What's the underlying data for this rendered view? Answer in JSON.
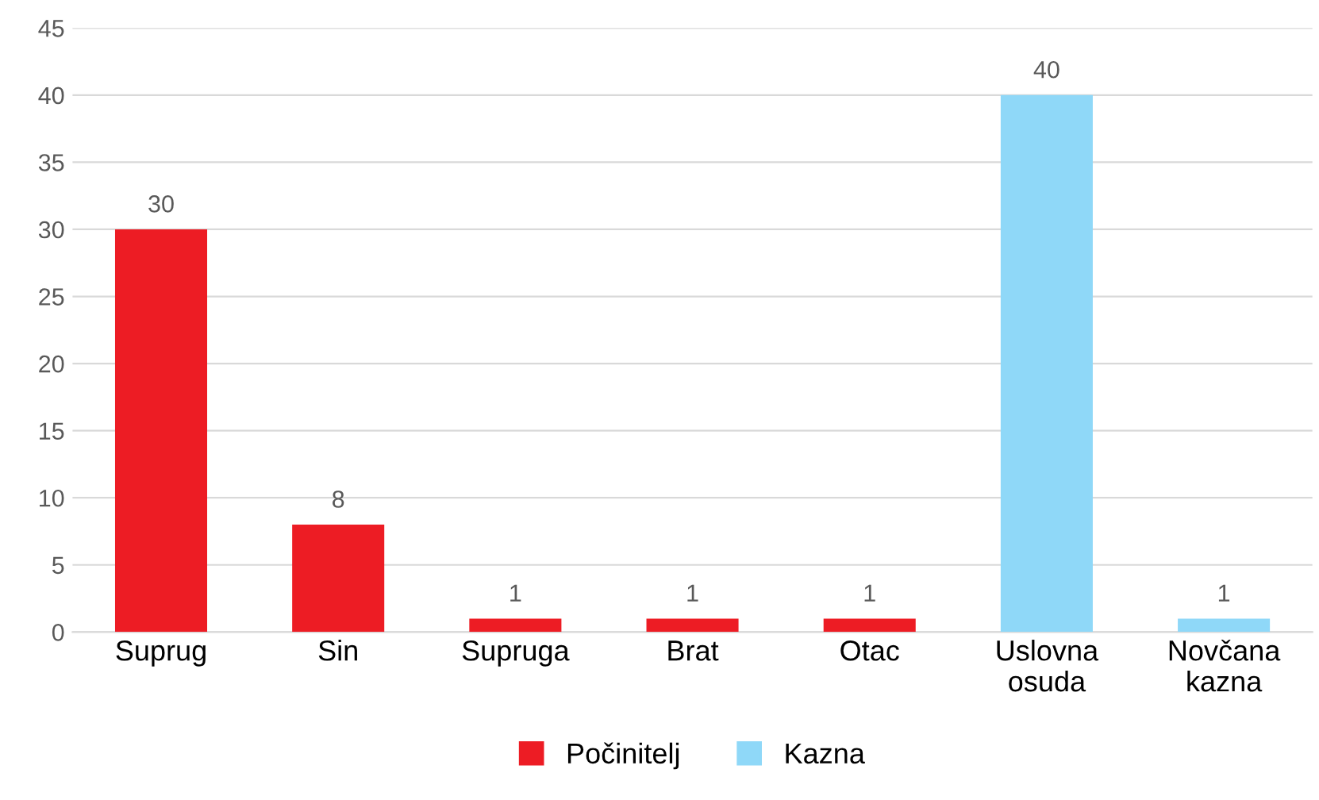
{
  "chart_data": {
    "type": "bar",
    "categories": [
      "Suprug",
      "Sin",
      "Supruga",
      "Brat",
      "Otac",
      "Uslovna\nosuda",
      "Novčana\nkazna"
    ],
    "series": [
      {
        "name": "Počinitelj",
        "color": "#ed1c24",
        "values": [
          30,
          8,
          1,
          1,
          1,
          null,
          null
        ]
      },
      {
        "name": "Kazna",
        "color": "#8fd8f8",
        "values": [
          null,
          null,
          null,
          null,
          null,
          40,
          1
        ]
      }
    ],
    "ylim": [
      0,
      45
    ],
    "yticks": [
      0,
      5,
      10,
      15,
      20,
      25,
      30,
      35,
      40,
      45
    ],
    "grid": "y",
    "legend": "bottom",
    "data_labels": true
  }
}
